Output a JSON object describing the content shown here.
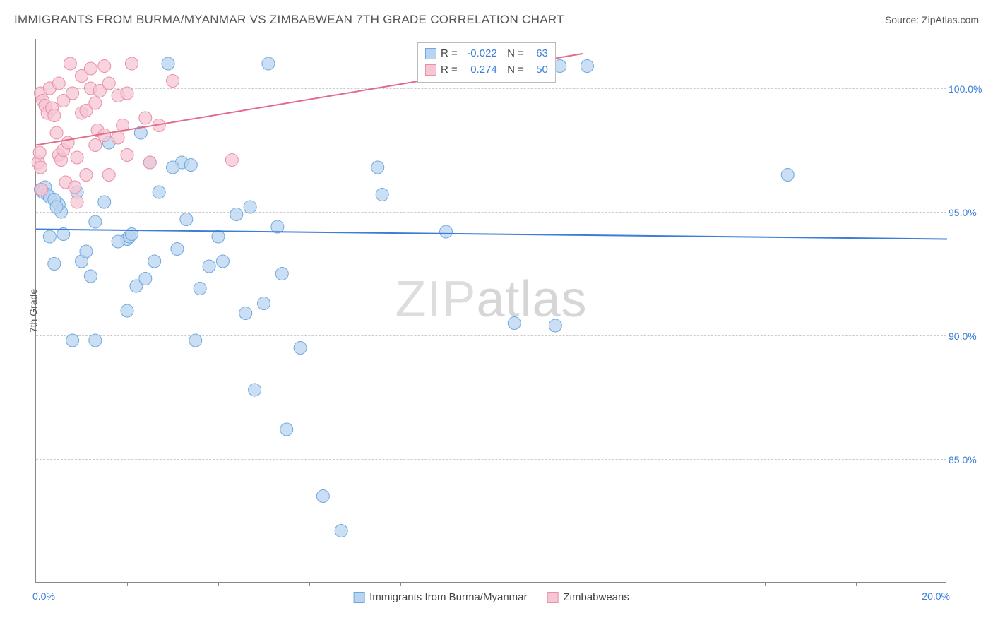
{
  "title": "IMMIGRANTS FROM BURMA/MYANMAR VS ZIMBABWEAN 7TH GRADE CORRELATION CHART",
  "source": "Source: ZipAtlas.com",
  "watermark": "ZIPatlas",
  "y_axis_title": "7th Grade",
  "xlim": [
    0,
    20
  ],
  "ylim": [
    80,
    102
  ],
  "x_min_label": "0.0%",
  "x_max_label": "20.0%",
  "y_ticks": [
    85.0,
    90.0,
    95.0,
    100.0
  ],
  "y_tick_labels": [
    "85.0%",
    "90.0%",
    "95.0%",
    "100.0%"
  ],
  "x_tick_positions": [
    2,
    4,
    6,
    8,
    10,
    12,
    14,
    16,
    18
  ],
  "colors": {
    "blue_fill": "#b9d4f0",
    "blue_stroke": "#6fa8e0",
    "blue_line": "#3b7dd8",
    "pink_fill": "#f6c6d3",
    "pink_stroke": "#e98fa8",
    "pink_line": "#e26b8a",
    "grid": "#cccccc",
    "text": "#555555"
  },
  "marker_radius": 9,
  "marker_opacity": 0.75,
  "line_width": 2,
  "legend": {
    "series1": {
      "label": "Immigrants from Burma/Myanmar",
      "R": "-0.022",
      "N": "63"
    },
    "series2": {
      "label": "Zimbabweans",
      "R": "0.274",
      "N": "50"
    }
  },
  "trend_lines": {
    "blue": {
      "x1": 0,
      "y1": 94.3,
      "x2": 20,
      "y2": 93.9
    },
    "pink": {
      "x1": 0,
      "y1": 97.7,
      "x2": 12,
      "y2": 101.4
    }
  },
  "series_blue": [
    [
      0.1,
      95.9
    ],
    [
      0.2,
      96.0
    ],
    [
      0.15,
      95.8
    ],
    [
      0.25,
      95.7
    ],
    [
      0.3,
      95.6
    ],
    [
      0.5,
      95.3
    ],
    [
      0.55,
      95.0
    ],
    [
      0.6,
      94.1
    ],
    [
      0.3,
      94.0
    ],
    [
      0.4,
      92.9
    ],
    [
      0.9,
      95.8
    ],
    [
      1.0,
      93.0
    ],
    [
      1.1,
      93.4
    ],
    [
      1.3,
      94.6
    ],
    [
      1.5,
      95.4
    ],
    [
      1.6,
      97.8
    ],
    [
      2.0,
      93.9
    ],
    [
      2.05,
      94.0
    ],
    [
      2.1,
      94.1
    ],
    [
      2.2,
      92.0
    ],
    [
      2.3,
      98.2
    ],
    [
      2.4,
      92.3
    ],
    [
      2.6,
      93.0
    ],
    [
      2.7,
      95.8
    ],
    [
      2.9,
      101.0
    ],
    [
      3.1,
      93.5
    ],
    [
      3.2,
      97.0
    ],
    [
      3.3,
      94.7
    ],
    [
      3.4,
      96.9
    ],
    [
      3.5,
      89.8
    ],
    [
      3.6,
      91.9
    ],
    [
      3.8,
      92.8
    ],
    [
      4.0,
      94.0
    ],
    [
      4.1,
      93.0
    ],
    [
      4.4,
      94.9
    ],
    [
      4.6,
      90.9
    ],
    [
      4.7,
      95.2
    ],
    [
      4.8,
      87.8
    ],
    [
      5.0,
      91.3
    ],
    [
      5.1,
      101.0
    ],
    [
      5.3,
      94.4
    ],
    [
      5.4,
      92.5
    ],
    [
      5.5,
      86.2
    ],
    [
      5.8,
      89.5
    ],
    [
      6.3,
      83.5
    ],
    [
      6.7,
      82.1
    ],
    [
      7.5,
      96.8
    ],
    [
      7.6,
      95.7
    ],
    [
      9.0,
      94.2
    ],
    [
      1.3,
      89.8
    ],
    [
      0.8,
      89.8
    ],
    [
      2.0,
      91.0
    ],
    [
      11.5,
      100.9
    ],
    [
      10.5,
      90.5
    ],
    [
      11.4,
      90.4
    ],
    [
      12.1,
      100.9
    ],
    [
      16.5,
      96.5
    ],
    [
      0.4,
      95.5
    ],
    [
      0.45,
      95.2
    ],
    [
      1.8,
      93.8
    ],
    [
      2.5,
      97.0
    ],
    [
      3.0,
      96.8
    ],
    [
      1.2,
      92.4
    ]
  ],
  "series_pink": [
    [
      0.1,
      99.8
    ],
    [
      0.15,
      99.5
    ],
    [
      0.2,
      99.3
    ],
    [
      0.25,
      99.0
    ],
    [
      0.3,
      100.0
    ],
    [
      0.35,
      99.2
    ],
    [
      0.4,
      98.9
    ],
    [
      0.45,
      98.2
    ],
    [
      0.5,
      100.2
    ],
    [
      0.5,
      97.3
    ],
    [
      0.55,
      97.1
    ],
    [
      0.6,
      97.5
    ],
    [
      0.6,
      99.5
    ],
    [
      0.65,
      96.2
    ],
    [
      0.7,
      97.8
    ],
    [
      0.75,
      101.0
    ],
    [
      0.8,
      99.8
    ],
    [
      0.85,
      96.0
    ],
    [
      0.9,
      97.2
    ],
    [
      0.9,
      95.4
    ],
    [
      1.0,
      99.0
    ],
    [
      1.0,
      100.5
    ],
    [
      1.1,
      96.5
    ],
    [
      1.1,
      99.1
    ],
    [
      1.2,
      100.8
    ],
    [
      1.2,
      100.0
    ],
    [
      1.3,
      99.4
    ],
    [
      1.3,
      97.7
    ],
    [
      1.35,
      98.3
    ],
    [
      1.4,
      99.9
    ],
    [
      1.5,
      100.9
    ],
    [
      1.5,
      98.1
    ],
    [
      1.6,
      96.5
    ],
    [
      1.6,
      100.2
    ],
    [
      1.8,
      99.7
    ],
    [
      1.8,
      98.0
    ],
    [
      1.9,
      98.5
    ],
    [
      2.0,
      97.3
    ],
    [
      2.0,
      99.8
    ],
    [
      2.1,
      101.0
    ],
    [
      2.4,
      98.8
    ],
    [
      2.5,
      97.0
    ],
    [
      2.7,
      98.5
    ],
    [
      3.0,
      100.3
    ],
    [
      4.3,
      97.1
    ],
    [
      0.05,
      97.0
    ],
    [
      0.1,
      96.8
    ],
    [
      0.08,
      97.4
    ],
    [
      0.12,
      95.9
    ],
    [
      11.2,
      100.7
    ]
  ]
}
